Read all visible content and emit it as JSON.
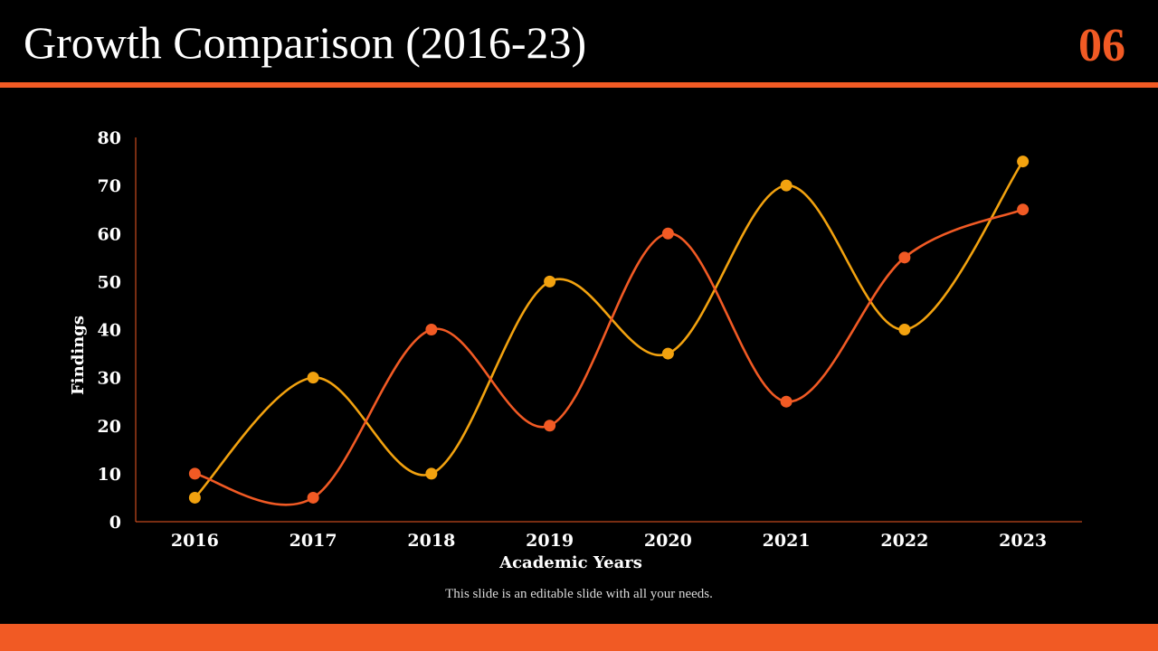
{
  "slide": {
    "title": "Growth Comparison (2016-23)",
    "number": "06",
    "footnote": "This slide is an editable slide with all your needs.",
    "accent_color": "#f15a24"
  },
  "chart_data": {
    "type": "line",
    "smooth": true,
    "title": "",
    "xlabel": "Academic Years",
    "ylabel": "Findings",
    "categories": [
      "2016",
      "2017",
      "2018",
      "2019",
      "2020",
      "2021",
      "2022",
      "2023"
    ],
    "ylim": [
      0,
      80
    ],
    "yticks": [
      0,
      10,
      20,
      30,
      40,
      50,
      60,
      70,
      80
    ],
    "grid": false,
    "legend": "none",
    "series": [
      {
        "color": "#f2a20f",
        "values": [
          5,
          30,
          10,
          50,
          35,
          70,
          40,
          75
        ]
      },
      {
        "color": "#f15a24",
        "values": [
          10,
          5,
          40,
          20,
          60,
          25,
          55,
          65
        ]
      }
    ]
  }
}
